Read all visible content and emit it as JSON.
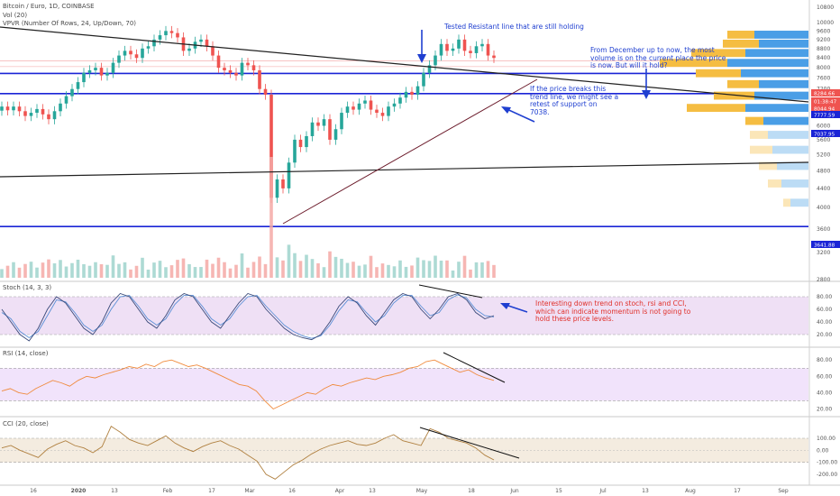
{
  "header": {
    "title": "Bitcoin / Euro, 1D, COINBASE",
    "vol": "Vol (20)",
    "vpvr": "VPVR (Number Of Rows, 24, Up/Down, 70)",
    "stoch": "Stoch (14, 3, 3)",
    "rsi": "RSI (14, close)",
    "cci": "CCI (20, close)"
  },
  "annotations": {
    "tested": "Tested Resistant line that are still holding",
    "volume": [
      "From December up to now, the most",
      "volume is on the current place the price",
      "is now. But will it hold?"
    ],
    "trend": [
      "If the price breaks this",
      "trend line, we might see a",
      "retest of support on",
      "7038."
    ],
    "momentum": [
      "Interesting down trend on stoch, rsi and CCI,",
      "which can indicate momentum is not going to",
      "hold these price levels."
    ]
  },
  "colors": {
    "up": "#26a69a",
    "down": "#ef5350",
    "support": "#1a24d6",
    "trendline": "#222222",
    "annotation_blue": "#1f3fd0",
    "annotation_red": "#e0302a",
    "stoch_k": "#3a4a7a",
    "stoch_d": "#5b8fd6",
    "rsi": "#f08a3c",
    "cci": "#b08040",
    "vp_up": "#4a9ee6",
    "vp_down": "#f5bd42"
  },
  "chart_data": {
    "type": "candlestick",
    "symbol": "Bitcoin / Euro",
    "interval": "1D",
    "exchange": "COINBASE",
    "x_ticks": [
      "16",
      "2020",
      "13",
      "Feb",
      "17",
      "Mar",
      "16",
      "Apr",
      "13",
      "May",
      "18",
      "Jun",
      "15",
      "Jul",
      "13",
      "Aug",
      "17",
      "Sep"
    ],
    "price_ticks": [
      10800,
      10000,
      9600,
      9200,
      8800,
      8400,
      8000,
      7600,
      7200,
      6800,
      6400,
      6000,
      5600,
      5200,
      4800,
      4400,
      4000,
      3600,
      3200,
      2800
    ],
    "price_scale": "log",
    "price_labels": [
      {
        "label": "8284.66",
        "color": "#ef5350"
      },
      {
        "label": "01:38:47",
        "color": "#ef5350"
      },
      {
        "label": "8044.94",
        "color": "#ef5350"
      },
      {
        "label": "7777.59",
        "color": "#1a24d6"
      },
      {
        "label": "7037.95",
        "color": "#1a24d6"
      },
      {
        "label": "3641.88",
        "color": "#1a24d6"
      }
    ],
    "support_levels": [
      7777.59,
      7037.95,
      3641.88
    ],
    "closes": [
      6600,
      6480,
      6600,
      6450,
      6300,
      6400,
      6520,
      6350,
      6200,
      6450,
      6700,
      6950,
      7200,
      7450,
      7800,
      7900,
      8000,
      7700,
      7800,
      8200,
      8500,
      8700,
      8550,
      8400,
      8800,
      8900,
      9200,
      9400,
      9600,
      9500,
      9300,
      8700,
      8800,
      9100,
      9200,
      8900,
      8500,
      8000,
      7900,
      7800,
      7700,
      8200,
      8100,
      7900,
      7200,
      7000,
      4200,
      4600,
      4400,
      5000,
      5600,
      5400,
      5700,
      6100,
      6000,
      6200,
      5600,
      5900,
      6400,
      6600,
      6500,
      6700,
      6800,
      6500,
      6400,
      6300,
      6600,
      6700,
      6900,
      7100,
      7000,
      7300,
      7800,
      8100,
      8500,
      9000,
      8700,
      8800,
      9200,
      8700,
      8600,
      8900,
      9000,
      8500,
      8400
    ],
    "volume_profile": [
      {
        "price": 9200,
        "up": 60,
        "down": 30
      },
      {
        "price": 8800,
        "up": 55,
        "down": 40
      },
      {
        "price": 8400,
        "up": 70,
        "down": 60
      },
      {
        "price": 8000,
        "up": 90,
        "down": 75
      },
      {
        "price": 7600,
        "up": 75,
        "down": 50
      },
      {
        "price": 7200,
        "up": 55,
        "down": 35
      },
      {
        "price": 6800,
        "up": 60,
        "down": 45
      },
      {
        "price": 6400,
        "up": 70,
        "down": 65
      },
      {
        "price": 6000,
        "up": 50,
        "down": 20
      },
      {
        "price": 5600,
        "up": 45,
        "down": 20
      },
      {
        "price": 5200,
        "up": 40,
        "down": 25
      },
      {
        "price": 4800,
        "up": 35,
        "down": 20
      },
      {
        "price": 4400,
        "up": 30,
        "down": 15
      },
      {
        "price": 4000,
        "up": 20,
        "down": 8
      }
    ],
    "stoch": {
      "ticks": [
        "80.00",
        "60.00",
        "40.00",
        "20.00"
      ],
      "k": [
        60,
        40,
        20,
        10,
        30,
        60,
        80,
        70,
        50,
        30,
        20,
        40,
        70,
        85,
        80,
        60,
        40,
        30,
        50,
        75,
        85,
        80,
        60,
        40,
        30,
        50,
        70,
        85,
        80,
        60,
        45,
        30,
        20,
        15,
        12,
        20,
        40,
        65,
        80,
        70,
        50,
        35,
        55,
        75,
        85,
        80,
        60,
        45,
        60,
        80,
        85,
        75,
        55,
        45,
        50
      ],
      "d": [
        55,
        45,
        25,
        15,
        25,
        50,
        75,
        72,
        55,
        35,
        25,
        35,
        60,
        80,
        82,
        65,
        45,
        35,
        45,
        68,
        82,
        82,
        65,
        45,
        35,
        45,
        65,
        80,
        82,
        65,
        50,
        35,
        25,
        18,
        14,
        18,
        35,
        58,
        75,
        72,
        55,
        40,
        50,
        70,
        82,
        82,
        65,
        50,
        55,
        75,
        83,
        78,
        60,
        50,
        48
      ]
    },
    "rsi": {
      "ticks": [
        "80.00",
        "60.00",
        "40.00",
        "20.00"
      ],
      "values": [
        42,
        45,
        40,
        38,
        45,
        50,
        55,
        52,
        48,
        55,
        60,
        58,
        62,
        65,
        68,
        72,
        70,
        75,
        72,
        78,
        80,
        76,
        72,
        74,
        70,
        65,
        60,
        55,
        50,
        48,
        42,
        30,
        20,
        25,
        30,
        35,
        40,
        38,
        45,
        50,
        48,
        52,
        55,
        58,
        56,
        60,
        62,
        65,
        70,
        72,
        78,
        80,
        75,
        70,
        65,
        68,
        62,
        58,
        55
      ]
    },
    "cci": {
      "ticks": [
        "0.00",
        "100.00",
        "-100.00",
        "-200.00"
      ],
      "values": [
        20,
        40,
        0,
        -30,
        -60,
        10,
        50,
        80,
        40,
        20,
        -20,
        30,
        200,
        150,
        90,
        60,
        40,
        80,
        120,
        60,
        20,
        -10,
        30,
        60,
        80,
        40,
        10,
        -40,
        -90,
        -200,
        -240,
        -180,
        -120,
        -80,
        -30,
        10,
        40,
        60,
        80,
        50,
        40,
        60,
        100,
        130,
        80,
        60,
        40,
        180,
        150,
        100,
        80,
        60,
        20,
        -40,
        -80
      ]
    }
  }
}
